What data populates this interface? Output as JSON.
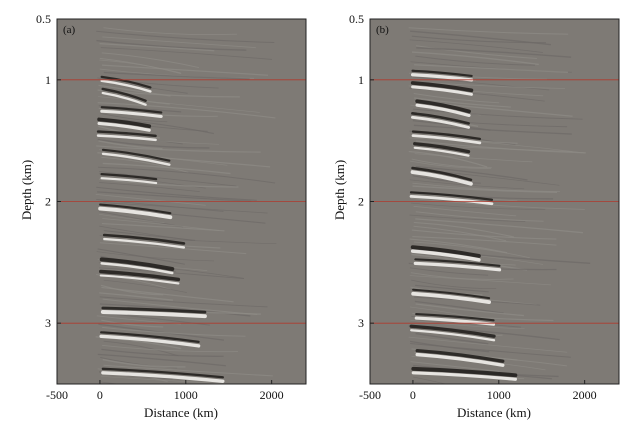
{
  "figure": {
    "panels": [
      {
        "panel_label": "(a)",
        "xlabel": "Distance (km)",
        "ylabel": "Depth (km)",
        "x_ticks": [
          "-500",
          "0",
          "1000",
          "2000"
        ],
        "y_ticks": [
          "0.5",
          "1",
          "2",
          "3"
        ]
      },
      {
        "panel_label": "(b)",
        "xlabel": "Distance (km)",
        "ylabel": "Depth (km)",
        "x_ticks": [
          "-500",
          "0",
          "1000",
          "2000"
        ],
        "y_ticks": [
          "0.5",
          "1",
          "2",
          "3"
        ]
      }
    ]
  },
  "chart_data": [
    {
      "type": "heatmap",
      "xlabel": "Distance (km)",
      "ylabel": "Depth (km)",
      "xlim": [
        -500,
        2400
      ],
      "ylim": [
        0.5,
        3.5
      ],
      "y_inverted": true,
      "grid": false,
      "reference_lines_depth": [
        1,
        2,
        3
      ],
      "reference_line_color": "#b03a2e",
      "colormap": [
        "#000000",
        "#7e7a75",
        "#ffffff"
      ],
      "description_seed": 7,
      "event_depths": [
        1.0,
        1.1,
        1.25,
        1.35,
        1.45,
        1.6,
        1.8,
        2.05,
        2.3,
        2.5,
        2.6,
        2.9,
        3.1,
        3.4
      ]
    },
    {
      "type": "heatmap",
      "xlabel": "Distance (km)",
      "ylabel": "Depth (km)",
      "xlim": [
        -500,
        2400
      ],
      "ylim": [
        0.5,
        3.5
      ],
      "y_inverted": true,
      "grid": false,
      "reference_lines_depth": [
        1,
        2,
        3
      ],
      "reference_line_color": "#b03a2e",
      "colormap": [
        "#000000",
        "#7e7a75",
        "#ffffff"
      ],
      "description_seed": 19,
      "event_depths": [
        0.95,
        1.05,
        1.2,
        1.3,
        1.45,
        1.55,
        1.75,
        1.95,
        2.4,
        2.5,
        2.75,
        2.95,
        3.05,
        3.25,
        3.4
      ]
    }
  ]
}
